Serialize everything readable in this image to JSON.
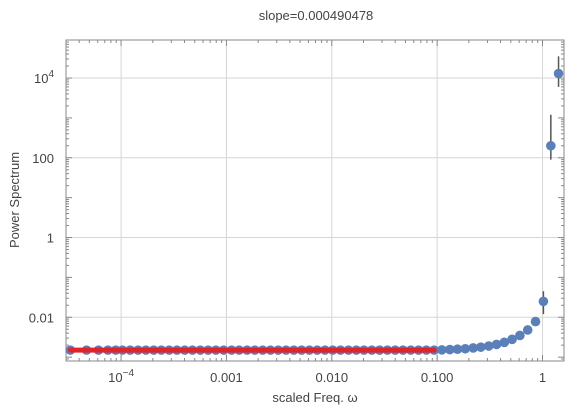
{
  "chart_data": {
    "type": "scatter",
    "title": "slope=0.000490478",
    "xlabel": "scaled Freq. ω",
    "ylabel": "Power Spectrum",
    "x_scale": "log",
    "y_scale": "log",
    "xlim": [
      3e-05,
      1.6
    ],
    "ylim": [
      0.0008,
      90000
    ],
    "grid": true,
    "x_ticks": [
      {
        "value": 0.0001,
        "base": "10",
        "exp": "−4"
      },
      {
        "value": 0.001,
        "label": "0.001"
      },
      {
        "value": 0.01,
        "label": "0.010"
      },
      {
        "value": 0.1,
        "label": "0.100"
      },
      {
        "value": 1,
        "label": "1"
      }
    ],
    "y_ticks": [
      {
        "value": 0.01,
        "label": "0.01"
      },
      {
        "value": 1,
        "label": "1"
      },
      {
        "value": 100,
        "label": "100"
      },
      {
        "value": 10000,
        "base": "10",
        "exp": "4"
      }
    ],
    "colors": {
      "points": "#5b7fb8",
      "fit": "#e0242a",
      "grid": "#d6d6d6",
      "frame": "#888888"
    },
    "series": [
      {
        "points": [
          [
            3.3e-05,
            0.0015
          ],
          [
            4.7e-05,
            0.0015
          ],
          [
            6.1e-05,
            0.0015
          ],
          [
            7.5e-05,
            0.0015
          ],
          [
            8.9e-05,
            0.0015
          ],
          [
            0.000103,
            0.0015
          ],
          [
            0.000122,
            0.0015
          ],
          [
            0.000145,
            0.0015
          ],
          [
            0.000172,
            0.0015
          ],
          [
            0.000204,
            0.0015
          ],
          [
            0.000241,
            0.0015
          ],
          [
            0.000286,
            0.0015
          ],
          [
            0.000339,
            0.0015
          ],
          [
            0.000402,
            0.0015
          ],
          [
            0.000476,
            0.0015
          ],
          [
            0.000565,
            0.0015
          ],
          [
            0.00067,
            0.0015
          ],
          [
            0.000794,
            0.0015
          ],
          [
            0.000942,
            0.0015
          ],
          [
            0.00112,
            0.0015
          ],
          [
            0.00132,
            0.0015
          ],
          [
            0.00157,
            0.0015
          ],
          [
            0.00186,
            0.0015
          ],
          [
            0.00221,
            0.0015
          ],
          [
            0.00262,
            0.0015
          ],
          [
            0.0031,
            0.0015
          ],
          [
            0.00368,
            0.0015
          ],
          [
            0.00436,
            0.0015
          ],
          [
            0.00517,
            0.0015
          ],
          [
            0.00613,
            0.0015
          ],
          [
            0.00727,
            0.0015
          ],
          [
            0.00862,
            0.0015
          ],
          [
            0.0102,
            0.0015
          ],
          [
            0.0121,
            0.0015
          ],
          [
            0.0144,
            0.0015
          ],
          [
            0.0171,
            0.0015
          ],
          [
            0.0202,
            0.0015
          ],
          [
            0.024,
            0.0015
          ],
          [
            0.0284,
            0.0015
          ],
          [
            0.0337,
            0.0015
          ],
          [
            0.04,
            0.0015
          ],
          [
            0.0474,
            0.0015
          ],
          [
            0.0562,
            0.0015
          ],
          [
            0.0666,
            0.0015
          ],
          [
            0.079,
            0.0015
          ],
          [
            0.0937,
            0.0015
          ],
          [
            0.111,
            0.00152
          ],
          [
            0.132,
            0.00155
          ],
          [
            0.156,
            0.00158
          ],
          [
            0.185,
            0.00162
          ],
          [
            0.22,
            0.0017
          ],
          [
            0.26,
            0.00178
          ],
          [
            0.309,
            0.0019
          ],
          [
            0.366,
            0.00208
          ],
          [
            0.434,
            0.00235
          ],
          [
            0.515,
            0.0028
          ],
          [
            0.61,
            0.0035
          ],
          [
            0.724,
            0.0048
          ],
          [
            0.859,
            0.0078
          ],
          [
            1.02,
            0.025
          ],
          [
            1.2,
            200
          ],
          [
            1.42,
            13000
          ]
        ],
        "error_bars": [
          [
            1.02,
            0.012,
            0.045
          ],
          [
            1.2,
            90,
            1200
          ],
          [
            1.42,
            6000,
            35000
          ]
        ]
      }
    ],
    "fit_line": {
      "x": [
        3.3e-05,
        0.0937
      ],
      "y": [
        0.0015,
        0.0015
      ]
    }
  }
}
